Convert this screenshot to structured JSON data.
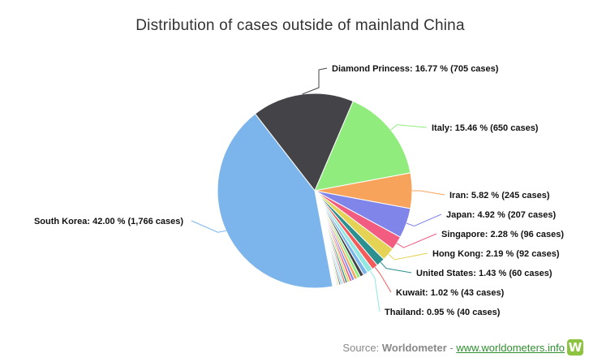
{
  "chart_data": {
    "type": "pie",
    "title": "Distribution of cases outside of mainland China",
    "slices": [
      {
        "label": "Diamond Princess: 16.77 % (705 cases)",
        "value": 16.77,
        "color": "#434348",
        "labelled": true
      },
      {
        "label": "Italy: 15.46 % (650 cases)",
        "value": 15.46,
        "color": "#90ed7d",
        "labelled": true
      },
      {
        "label": "Iran: 5.82 % (245 cases)",
        "value": 5.82,
        "color": "#f7a35c",
        "labelled": true
      },
      {
        "label": "Japan: 4.92 % (207 cases)",
        "value": 4.92,
        "color": "#8085e9",
        "labelled": true
      },
      {
        "label": "Singapore: 2.28 % (96 cases)",
        "value": 2.28,
        "color": "#f15c80",
        "labelled": true
      },
      {
        "label": "Hong Kong: 2.19 % (92 cases)",
        "value": 2.19,
        "color": "#e4d354",
        "labelled": true
      },
      {
        "label": "United States: 1.43 % (60 cases)",
        "value": 1.43,
        "color": "#2b908f",
        "labelled": true
      },
      {
        "label": "Kuwait: 1.02 % (43 cases)",
        "value": 1.02,
        "color": "#f45b5b",
        "labelled": true
      },
      {
        "label": "Thailand: 0.95 % (40 cases)",
        "value": 0.95,
        "color": "#91e8e1",
        "labelled": true
      },
      {
        "label": "",
        "value": 0.75,
        "color": "#7cb5ec",
        "labelled": false
      },
      {
        "label": "",
        "value": 0.6,
        "color": "#434348",
        "labelled": false
      },
      {
        "label": "",
        "value": 0.55,
        "color": "#90ed7d",
        "labelled": false
      },
      {
        "label": "",
        "value": 0.5,
        "color": "#f7a35c",
        "labelled": false
      },
      {
        "label": "",
        "value": 0.45,
        "color": "#8085e9",
        "labelled": false
      },
      {
        "label": "",
        "value": 0.4,
        "color": "#f15c80",
        "labelled": false
      },
      {
        "label": "",
        "value": 0.38,
        "color": "#e4d354",
        "labelled": false
      },
      {
        "label": "",
        "value": 0.35,
        "color": "#2b908f",
        "labelled": false
      },
      {
        "label": "",
        "value": 0.3,
        "color": "#f45b5b",
        "labelled": false
      },
      {
        "label": "",
        "value": 0.28,
        "color": "#91e8e1",
        "labelled": false
      },
      {
        "label": "",
        "value": 0.25,
        "color": "#7cb5ec",
        "labelled": false
      },
      {
        "label": "",
        "value": 0.23,
        "color": "#434348",
        "labelled": false
      },
      {
        "label": "",
        "value": 0.2,
        "color": "#90ed7d",
        "labelled": false
      },
      {
        "label": "",
        "value": 0.18,
        "color": "#f7a35c",
        "labelled": false
      },
      {
        "label": "",
        "value": 0.15,
        "color": "#8085e9",
        "labelled": false
      },
      {
        "label": "",
        "value": 0.14,
        "color": "#f15c80",
        "labelled": false
      },
      {
        "label": "",
        "value": 0.12,
        "color": "#e4d354",
        "labelled": false
      },
      {
        "label": "",
        "value": 0.11,
        "color": "#2b908f",
        "labelled": false
      },
      {
        "label": "",
        "value": 0.1,
        "color": "#f45b5b",
        "labelled": false
      },
      {
        "label": "",
        "value": 0.09,
        "color": "#91e8e1",
        "labelled": false
      },
      {
        "label": "South Korea: 42.00 % (1,766 cases)",
        "value": 42.0,
        "color": "#7cb5ec",
        "labelled": true
      }
    ]
  },
  "source": {
    "prefix": "Source: ",
    "name": "Worldometer",
    "separator": " - ",
    "link_text": "www.worldometers.info",
    "logo_letter": "W",
    "logo_color": "#8cc43f"
  }
}
